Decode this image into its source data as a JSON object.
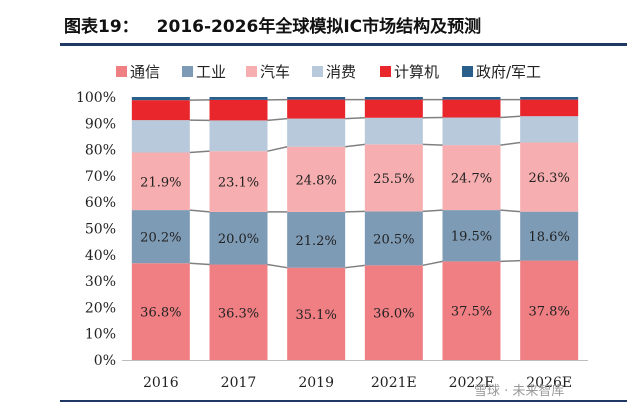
{
  "figure": {
    "label": "图表19：",
    "title": "2016-2026年全球模拟IC市场结构及预测"
  },
  "watermark": "雪球 · 未来智库",
  "chart_data": {
    "type": "bar",
    "stacked": true,
    "categories": [
      "2016",
      "2017",
      "2019",
      "2021E",
      "2022E",
      "2026E"
    ],
    "ylim": [
      0,
      100
    ],
    "yticks": [
      "0%",
      "10%",
      "20%",
      "30%",
      "40%",
      "50%",
      "60%",
      "70%",
      "80%",
      "90%",
      "100%"
    ],
    "legend_position": "top",
    "series": [
      {
        "name": "通信",
        "color": "#f07f84",
        "values": [
          36.8,
          36.3,
          35.1,
          36.0,
          37.5,
          37.8
        ],
        "labels": [
          "36.8%",
          "36.3%",
          "35.1%",
          "36.0%",
          "37.5%",
          "37.8%"
        ]
      },
      {
        "name": "工业",
        "color": "#7e9bb6",
        "values": [
          20.2,
          20.0,
          21.2,
          20.5,
          19.5,
          18.6
        ],
        "labels": [
          "20.2%",
          "20.0%",
          "21.2%",
          "20.5%",
          "19.5%",
          "18.6%"
        ]
      },
      {
        "name": "汽车",
        "color": "#f7aeb0",
        "values": [
          21.9,
          23.1,
          24.8,
          25.5,
          24.7,
          26.3
        ],
        "labels": [
          "21.9%",
          "23.1%",
          "24.8%",
          "25.5%",
          "24.7%",
          "26.3%"
        ]
      },
      {
        "name": "消费",
        "color": "#b7c9da",
        "values": [
          12.3,
          11.7,
          10.7,
          10.1,
          10.5,
          10.0
        ]
      },
      {
        "name": "计算机",
        "color": "#e8262b",
        "values": [
          7.6,
          7.8,
          7.2,
          6.9,
          6.8,
          6.3
        ]
      },
      {
        "name": "政府/军工",
        "color": "#2a5f8c",
        "values": [
          1.2,
          1.1,
          1.0,
          1.0,
          1.0,
          1.0
        ]
      }
    ],
    "connector_lines": true
  }
}
